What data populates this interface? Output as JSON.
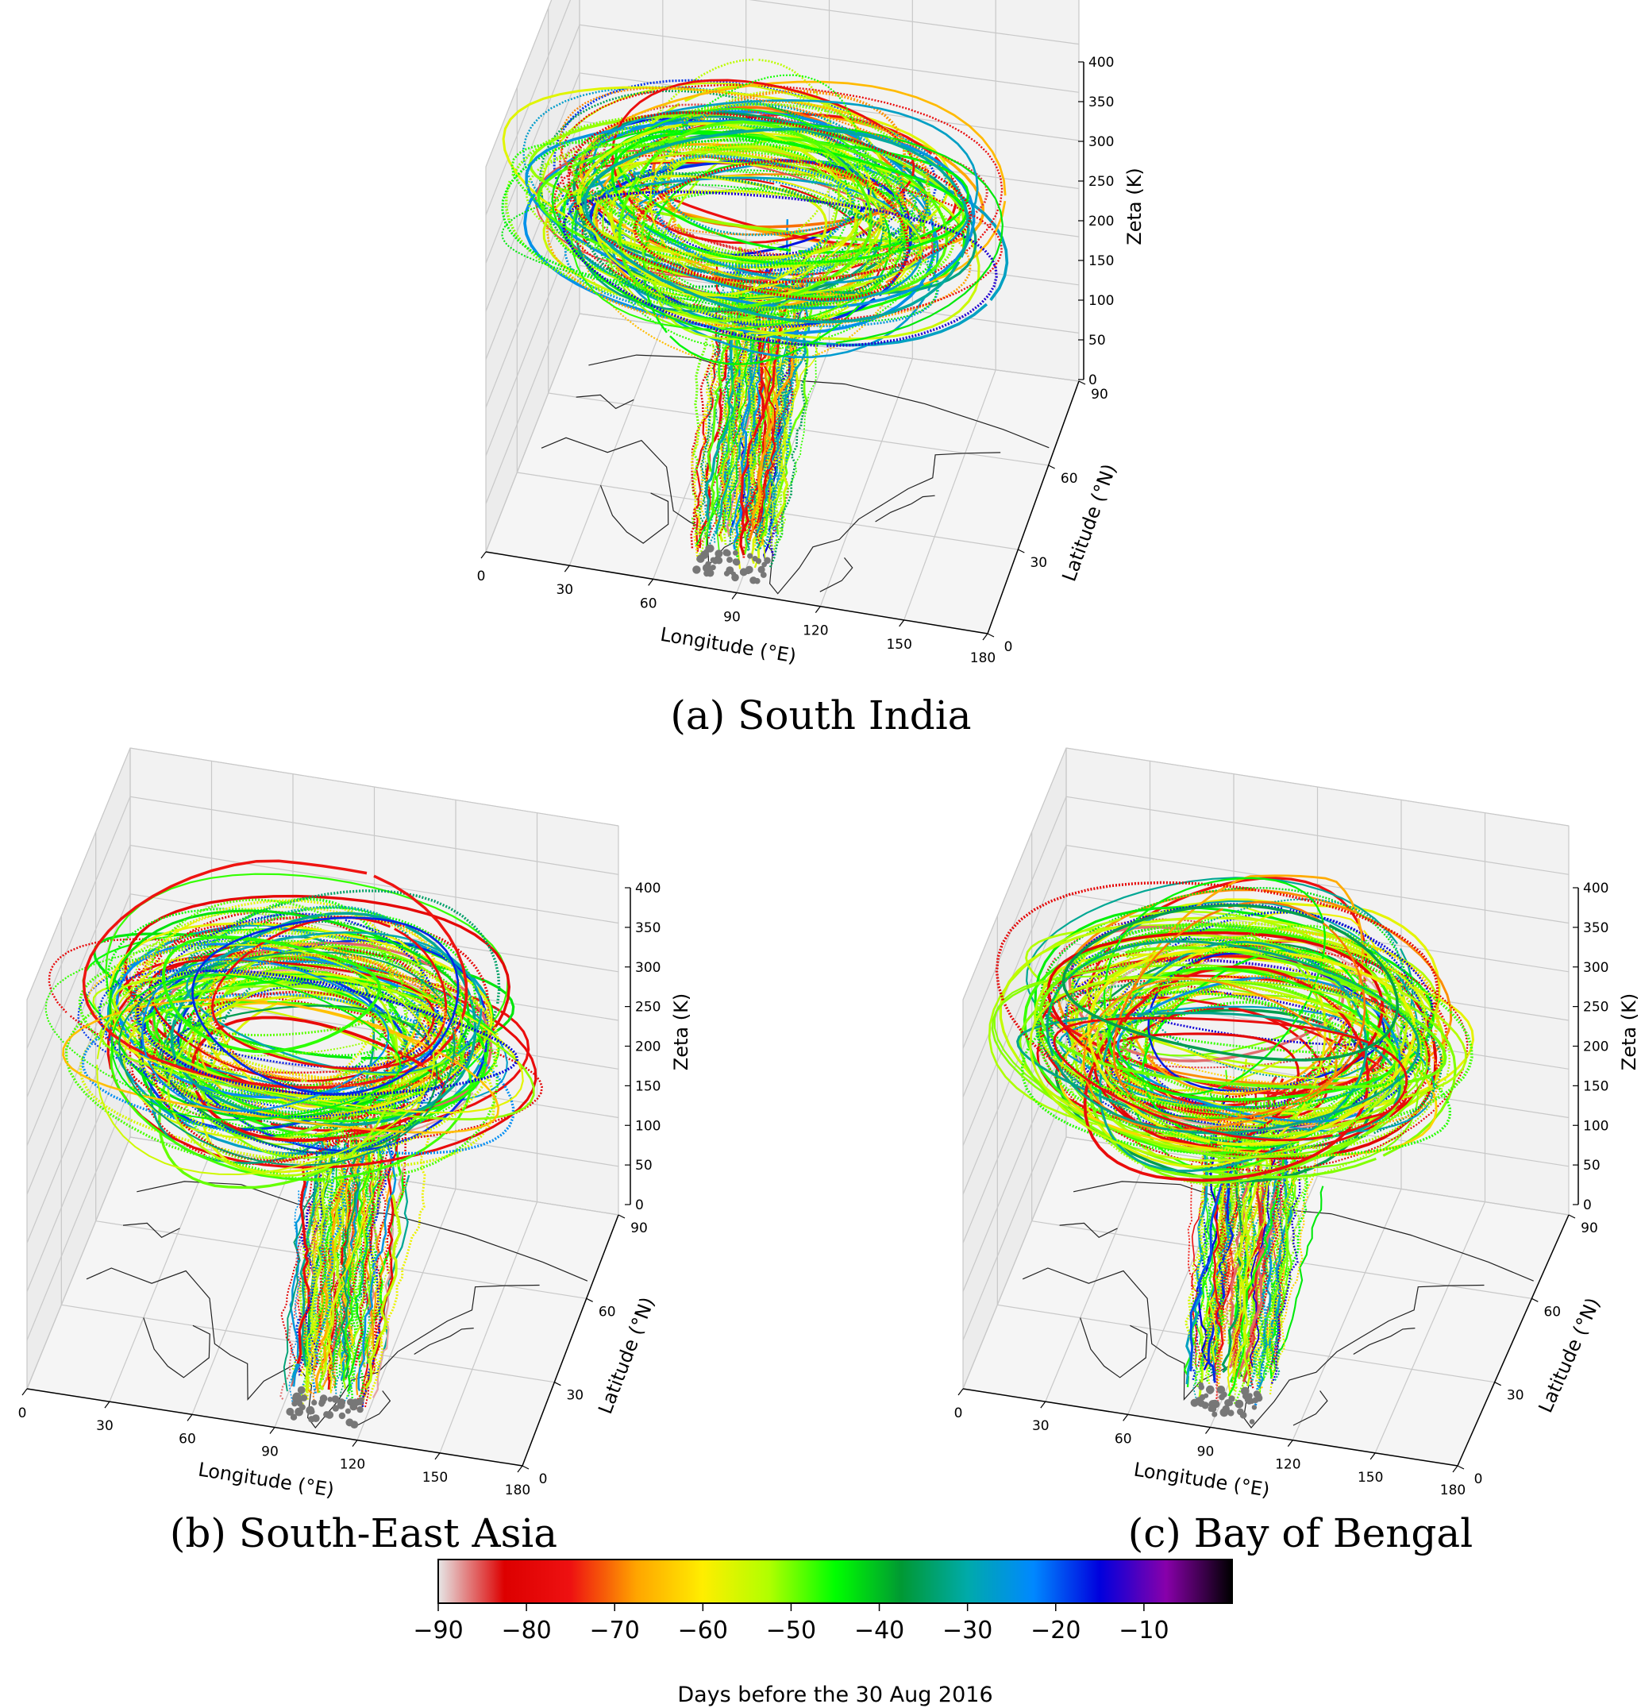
{
  "chart_data": [
    {
      "type": "scatter",
      "subtype": "3d-trajectories",
      "caption": "(a) South India",
      "xlabel": "Longitude (°E)",
      "ylabel": "Latitude (°N)",
      "zlabel": "Zeta (K)",
      "xlim": [
        0,
        180
      ],
      "ylim": [
        0,
        90
      ],
      "zlim": [
        0,
        400
      ],
      "xticks": [
        "0",
        "30",
        "60",
        "90",
        "120",
        "150",
        "180"
      ],
      "yticks": [
        "0",
        "30",
        "60",
        "90"
      ],
      "zticks": [
        "0",
        "50",
        "100",
        "150",
        "200",
        "250",
        "300",
        "350",
        "400"
      ],
      "grid": true,
      "trajectory_top_zeta": [
        230,
        300
      ],
      "source_region_center": [
        85,
        15
      ]
    },
    {
      "type": "scatter",
      "subtype": "3d-trajectories",
      "caption": "(b) South-East Asia",
      "xlabel": "Longitude (°E)",
      "ylabel": "Latitude (°N)",
      "zlabel": "Zeta (K)",
      "xlim": [
        0,
        180
      ],
      "ylim": [
        0,
        90
      ],
      "zlim": [
        0,
        400
      ],
      "xticks": [
        "0",
        "30",
        "60",
        "90",
        "120",
        "150",
        "180"
      ],
      "yticks": [
        "0",
        "30",
        "60",
        "90"
      ],
      "zticks": [
        "0",
        "50",
        "100",
        "150",
        "200",
        "250",
        "300",
        "350",
        "400"
      ],
      "grid": true,
      "trajectory_top_zeta": [
        220,
        320
      ],
      "source_region_center": [
        105,
        15
      ]
    },
    {
      "type": "scatter",
      "subtype": "3d-trajectories",
      "caption": "(c) Bay of Bengal",
      "xlabel": "Longitude (°E)",
      "ylabel": "Latitude (°N)",
      "zlabel": "Zeta (K)",
      "xlim": [
        0,
        180
      ],
      "ylim": [
        0,
        90
      ],
      "zlim": [
        0,
        400
      ],
      "xticks": [
        "0",
        "30",
        "60",
        "90",
        "120",
        "150",
        "180"
      ],
      "yticks": [
        "0",
        "30",
        "60",
        "90"
      ],
      "zticks": [
        "0",
        "50",
        "100",
        "150",
        "200",
        "250",
        "300",
        "350",
        "400"
      ],
      "grid": true,
      "trajectory_top_zeta": [
        230,
        310
      ],
      "source_region_center": [
        92,
        15
      ]
    }
  ],
  "colorbar": {
    "label": "Days before the 30 Aug 2016",
    "range": [
      -90,
      0
    ],
    "ticks": [
      "−90",
      "−80",
      "−70",
      "−60",
      "−50",
      "−40",
      "−30",
      "−20",
      "−10"
    ],
    "tick_values": [
      -90,
      -80,
      -70,
      -60,
      -50,
      -40,
      -30,
      -20,
      -10
    ],
    "colormap": [
      "#e6e6e6",
      "#dd0000",
      "#ee1111",
      "#ffa500",
      "#ffee00",
      "#b0ff00",
      "#00ff00",
      "#009933",
      "#00aaaa",
      "#0088ff",
      "#0000dd",
      "#8800aa",
      "#000000"
    ]
  }
}
